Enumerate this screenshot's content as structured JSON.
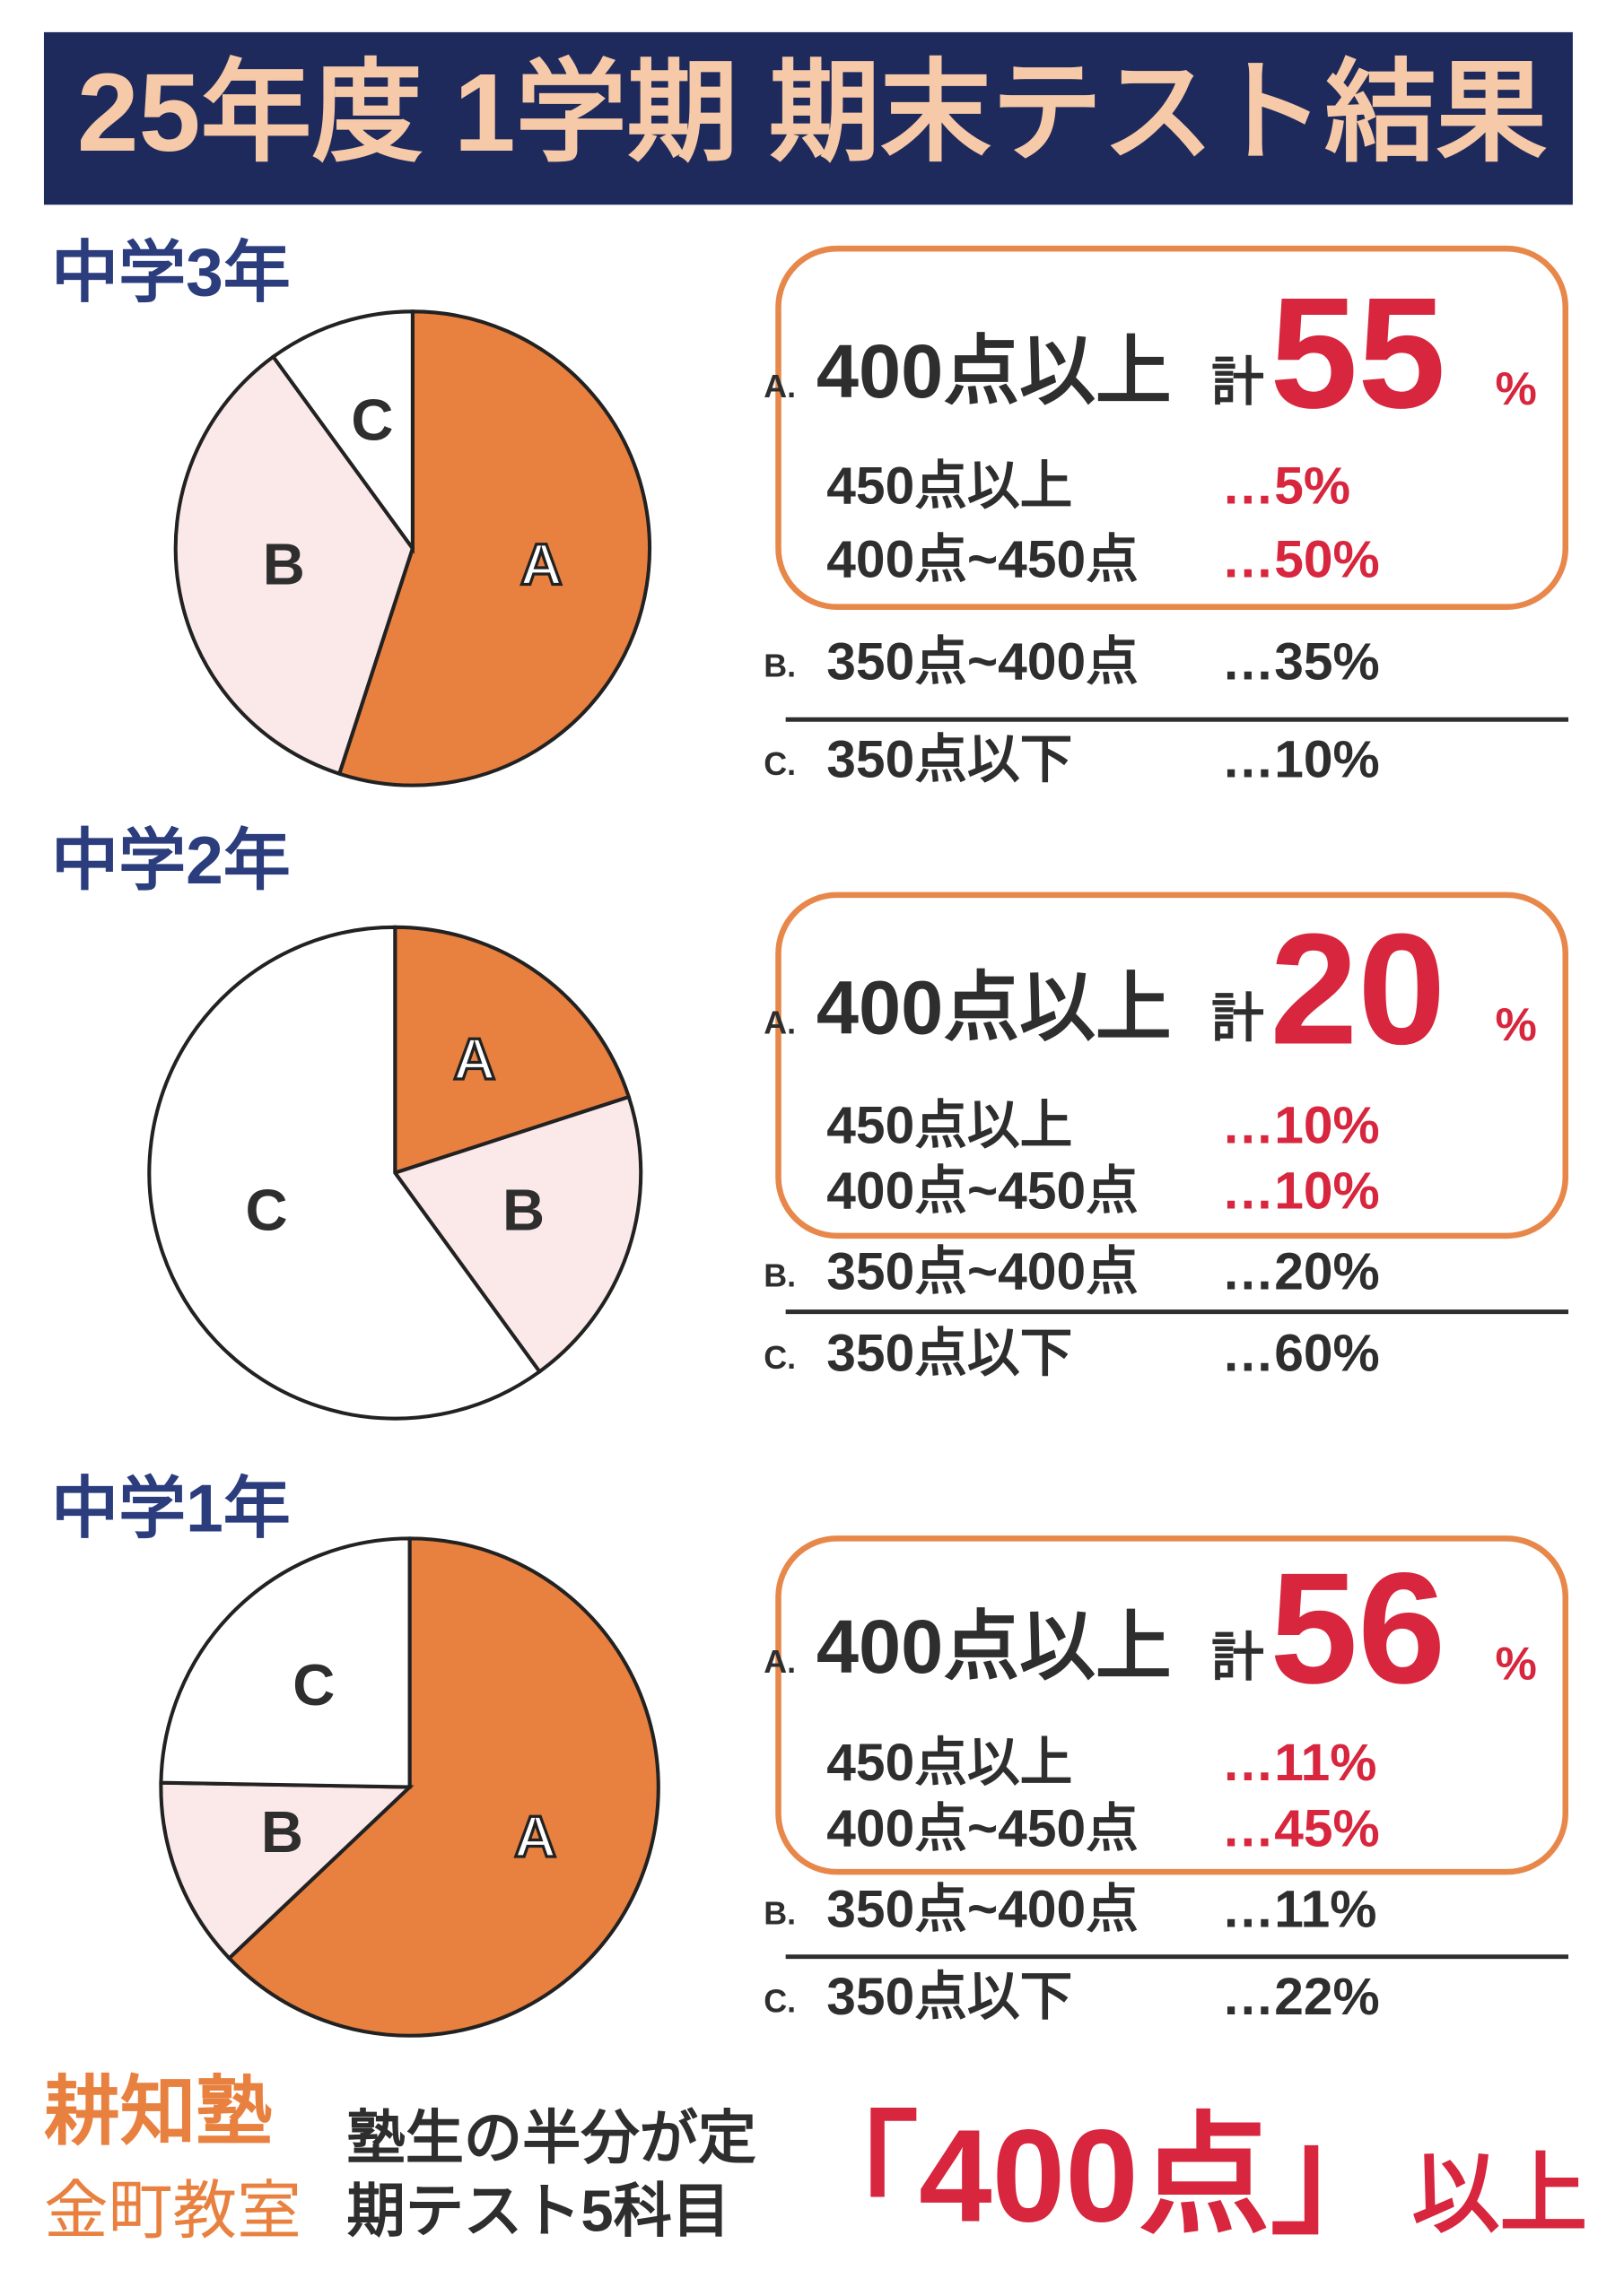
{
  "header": {
    "title": "25年度 1学期 期末テスト結果"
  },
  "chart_data": [
    {
      "type": "pie",
      "title": "中学3年",
      "categories": [
        "A",
        "B",
        "C"
      ],
      "values": [
        55,
        35,
        10
      ],
      "colors": [
        "#e8803f",
        "#fbe8e8",
        "#ffffff"
      ]
    },
    {
      "type": "pie",
      "title": "中学2年",
      "categories": [
        "A",
        "B",
        "C"
      ],
      "values": [
        20,
        20,
        60
      ],
      "colors": [
        "#e8803f",
        "#fbe8e8",
        "#ffffff"
      ]
    },
    {
      "type": "pie",
      "title": "中学1年",
      "categories": [
        "A",
        "B",
        "C"
      ],
      "values": [
        56,
        11,
        22
      ],
      "colors": [
        "#e8803f",
        "#fbe8e8",
        "#ffffff"
      ]
    }
  ],
  "panels": [
    {
      "a_marker": "A.",
      "a_label": "400点以上",
      "total_label": "計",
      "total_unit": "%",
      "rows": [
        {
          "label": "450点以上",
          "value": "…5%"
        },
        {
          "label": "400点~450点",
          "value": "…50%"
        }
      ],
      "b_marker": "B.",
      "b_label": "350点~400点",
      "b_value": "…35%",
      "c_marker": "C.",
      "c_label": "350点以下",
      "c_value": "…10%"
    },
    {
      "a_marker": "A.",
      "a_label": "400点以上",
      "total_label": "計",
      "total_unit": "%",
      "rows": [
        {
          "label": "450点以上",
          "value": "…10%"
        },
        {
          "label": "400点~450点",
          "value": "…10%"
        }
      ],
      "b_marker": "B.",
      "b_label": "350点~400点",
      "b_value": "…20%",
      "c_marker": "C.",
      "c_label": "350点以下",
      "c_value": "…60%"
    },
    {
      "a_marker": "A.",
      "a_label": "400点以上",
      "total_label": "計",
      "total_unit": "%",
      "rows": [
        {
          "label": "450点以上",
          "value": "…11%"
        },
        {
          "label": "400点~450点",
          "value": "…45%"
        }
      ],
      "b_marker": "B.",
      "b_label": "350点~400点",
      "b_value": "…11%",
      "c_marker": "C.",
      "c_label": "350点以下",
      "c_value": "…22%"
    }
  ],
  "footer": {
    "brand": "耕知塾",
    "branch": "金町教室",
    "line1": "塾生の半分が定",
    "line2": "期テスト5科目",
    "highlight": "「400点」",
    "suffix": "以上"
  }
}
